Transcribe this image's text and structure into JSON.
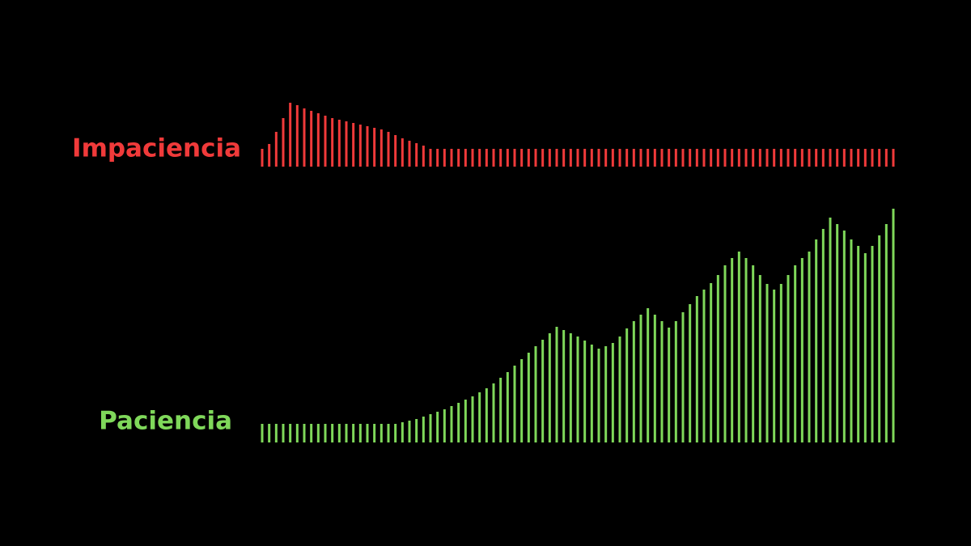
{
  "chart_data": {
    "type": "bar",
    "series": [
      {
        "name": "Impaciencia",
        "color": "#f03a3a",
        "values": [
          22,
          28,
          43,
          60,
          79,
          76,
          72,
          69,
          66,
          63,
          60,
          58,
          56,
          54,
          52,
          50,
          48,
          46,
          43,
          39,
          35,
          32,
          29,
          26,
          22,
          22,
          22,
          22,
          22,
          22,
          22,
          22,
          22,
          22,
          22,
          22,
          22,
          22,
          22,
          22,
          22,
          22,
          22,
          22,
          22,
          22,
          22,
          22,
          22,
          22,
          22,
          22,
          22,
          22,
          22,
          22,
          22,
          22,
          22,
          22,
          22,
          22,
          22,
          22,
          22,
          22,
          22,
          22,
          22,
          22,
          22,
          22,
          22,
          22,
          22,
          22,
          22,
          22,
          22,
          22,
          22,
          22,
          22,
          22,
          22,
          22,
          22,
          22,
          22,
          22,
          22
        ]
      },
      {
        "name": "Paciencia",
        "color": "#7fd85a",
        "values": [
          23,
          23,
          23,
          23,
          23,
          23,
          23,
          23,
          23,
          23,
          23,
          23,
          23,
          23,
          23,
          23,
          23,
          23,
          23,
          23,
          25,
          27,
          29,
          32,
          35,
          38,
          41,
          45,
          49,
          53,
          57,
          62,
          67,
          73,
          80,
          87,
          95,
          103,
          111,
          119,
          127,
          135,
          143,
          139,
          135,
          131,
          126,
          121,
          116,
          119,
          123,
          131,
          141,
          150,
          158,
          166,
          158,
          150,
          142,
          150,
          161,
          171,
          181,
          189,
          197,
          207,
          219,
          228,
          236,
          228,
          219,
          207,
          196,
          189,
          196,
          207,
          219,
          228,
          236,
          251,
          264,
          278,
          270,
          262,
          251,
          243,
          234,
          243,
          256,
          270,
          289
        ]
      }
    ]
  }
}
